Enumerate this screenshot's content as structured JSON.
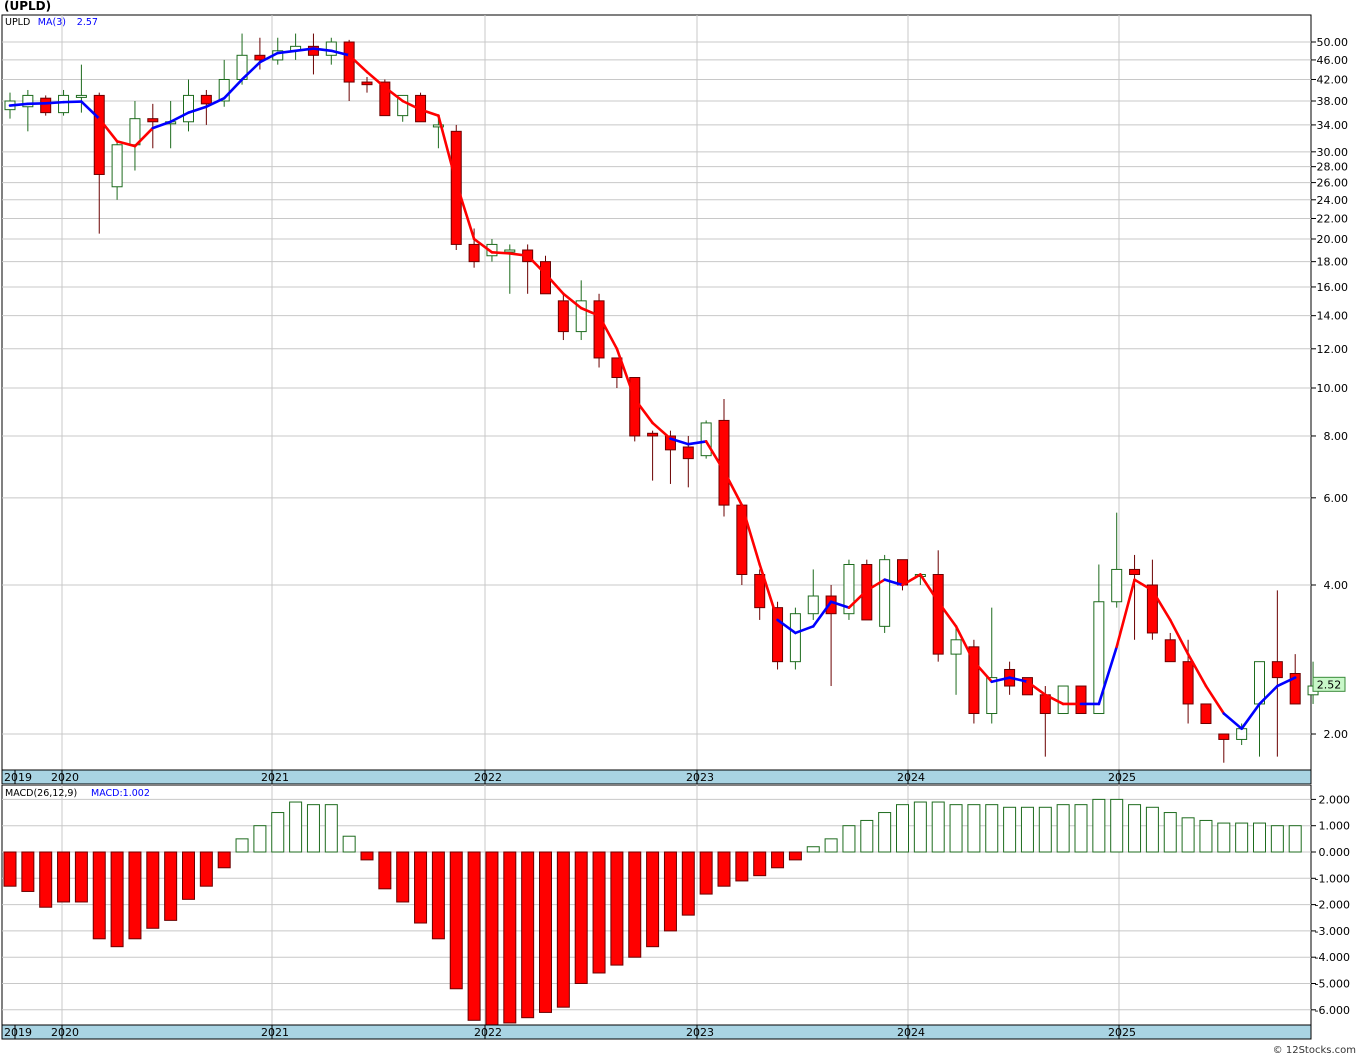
{
  "title": "(UPLD)",
  "credit": "© 12Stocks.com",
  "chart_data": [
    {
      "type": "candlestick",
      "legend": [
        {
          "label": "UPLD",
          "color": "#000000"
        },
        {
          "label": "MA(3)",
          "color": "#0000ff"
        },
        {
          "label": "2.57",
          "color": "#0000ff"
        }
      ],
      "yscale": "log",
      "ylim": [
        1.8,
        55
      ],
      "ytick_labels": [
        "50.00",
        "46.00",
        "42.00",
        "38.00",
        "34.00",
        "30.00",
        "28.00",
        "26.00",
        "24.00",
        "22.00",
        "20.00",
        "18.00",
        "16.00",
        "14.00",
        "12.00",
        "10.00",
        "8.00",
        "6.00",
        "4.00",
        "2.00"
      ],
      "x_labels": [
        "2019",
        "2020",
        "2021",
        "2022",
        "2023",
        "2024",
        "2025"
      ],
      "last_price_label": "2.52",
      "grid": true,
      "candles": [
        {
          "o": 36.5,
          "h": 39.5,
          "l": 35.0,
          "c": 38.0
        },
        {
          "o": 37.0,
          "h": 40.0,
          "l": 33.0,
          "c": 39.0
        },
        {
          "o": 38.5,
          "h": 39.0,
          "l": 35.5,
          "c": 36.0
        },
        {
          "o": 36.0,
          "h": 40.0,
          "l": 35.5,
          "c": 39.0
        },
        {
          "o": 39.0,
          "h": 45.0,
          "l": 36.0,
          "c": 39.0
        },
        {
          "o": 39.0,
          "h": 39.5,
          "l": 20.5,
          "c": 27.0
        },
        {
          "o": 25.5,
          "h": 31.5,
          "l": 24.0,
          "c": 31.0
        },
        {
          "o": 31.0,
          "h": 38.0,
          "l": 27.5,
          "c": 35.0
        },
        {
          "o": 35.0,
          "h": 37.5,
          "l": 30.5,
          "c": 34.5
        },
        {
          "o": 34.5,
          "h": 38.0,
          "l": 30.5,
          "c": 34.5
        },
        {
          "o": 34.5,
          "h": 42.0,
          "l": 33.0,
          "c": 39.0
        },
        {
          "o": 39.0,
          "h": 40.0,
          "l": 34.0,
          "c": 37.5
        },
        {
          "o": 38.0,
          "h": 46.0,
          "l": 37.0,
          "c": 42.0
        },
        {
          "o": 42.0,
          "h": 52.0,
          "l": 41.0,
          "c": 47.0
        },
        {
          "o": 47.0,
          "h": 51.0,
          "l": 44.0,
          "c": 46.0
        },
        {
          "o": 46.0,
          "h": 51.0,
          "l": 45.0,
          "c": 48.0
        },
        {
          "o": 48.0,
          "h": 52.0,
          "l": 46.0,
          "c": 49.0
        },
        {
          "o": 49.0,
          "h": 52.0,
          "l": 43.0,
          "c": 47.0
        },
        {
          "o": 47.0,
          "h": 51.0,
          "l": 45.0,
          "c": 50.0
        },
        {
          "o": 50.0,
          "h": 50.5,
          "l": 38.0,
          "c": 41.5
        },
        {
          "o": 41.5,
          "h": 42.5,
          "l": 39.5,
          "c": 41.0
        },
        {
          "o": 41.5,
          "h": 42.0,
          "l": 35.5,
          "c": 35.5
        },
        {
          "o": 35.5,
          "h": 39.0,
          "l": 34.5,
          "c": 39.0
        },
        {
          "o": 39.0,
          "h": 39.5,
          "l": 34.5,
          "c": 34.5
        },
        {
          "o": 34.0,
          "h": 35.0,
          "l": 30.5,
          "c": 34.0
        },
        {
          "o": 33.0,
          "h": 34.0,
          "l": 19.0,
          "c": 19.5
        },
        {
          "o": 19.5,
          "h": 21.0,
          "l": 17.5,
          "c": 18.0
        },
        {
          "o": 18.5,
          "h": 20.0,
          "l": 18.0,
          "c": 19.5
        },
        {
          "o": 19.0,
          "h": 19.5,
          "l": 15.5,
          "c": 19.0
        },
        {
          "o": 19.0,
          "h": 19.5,
          "l": 15.5,
          "c": 18.0
        },
        {
          "o": 18.0,
          "h": 18.5,
          "l": 15.5,
          "c": 15.5
        },
        {
          "o": 15.0,
          "h": 15.5,
          "l": 12.5,
          "c": 13.0
        },
        {
          "o": 13.0,
          "h": 16.5,
          "l": 12.5,
          "c": 15.0
        },
        {
          "o": 15.0,
          "h": 15.5,
          "l": 11.0,
          "c": 11.5
        },
        {
          "o": 11.5,
          "h": 11.5,
          "l": 10.0,
          "c": 10.5
        },
        {
          "o": 10.5,
          "h": 10.5,
          "l": 7.8,
          "c": 8.0
        },
        {
          "o": 8.1,
          "h": 8.2,
          "l": 6.5,
          "c": 8.0
        },
        {
          "o": 8.0,
          "h": 8.2,
          "l": 6.4,
          "c": 7.5
        },
        {
          "o": 7.6,
          "h": 8.0,
          "l": 6.3,
          "c": 7.2
        },
        {
          "o": 7.3,
          "h": 8.6,
          "l": 7.2,
          "c": 8.5
        },
        {
          "o": 8.6,
          "h": 9.5,
          "l": 5.5,
          "c": 5.8
        },
        {
          "o": 5.8,
          "h": 5.8,
          "l": 4.0,
          "c": 4.2
        },
        {
          "o": 4.2,
          "h": 4.3,
          "l": 3.4,
          "c": 3.6
        },
        {
          "o": 3.6,
          "h": 3.7,
          "l": 2.7,
          "c": 2.8
        },
        {
          "o": 2.8,
          "h": 3.6,
          "l": 2.7,
          "c": 3.5
        },
        {
          "o": 3.5,
          "h": 4.3,
          "l": 3.4,
          "c": 3.8
        },
        {
          "o": 3.8,
          "h": 4.0,
          "l": 2.5,
          "c": 3.5
        },
        {
          "o": 3.5,
          "h": 4.5,
          "l": 3.4,
          "c": 4.4
        },
        {
          "o": 4.4,
          "h": 4.5,
          "l": 3.4,
          "c": 3.4
        },
        {
          "o": 3.3,
          "h": 4.6,
          "l": 3.2,
          "c": 4.5
        },
        {
          "o": 4.5,
          "h": 4.5,
          "l": 3.9,
          "c": 4.0
        },
        {
          "o": 4.2,
          "h": 4.2,
          "l": 4.0,
          "c": 4.2
        },
        {
          "o": 4.2,
          "h": 4.7,
          "l": 2.8,
          "c": 2.9
        },
        {
          "o": 2.9,
          "h": 3.3,
          "l": 2.4,
          "c": 3.1
        },
        {
          "o": 3.0,
          "h": 3.1,
          "l": 2.1,
          "c": 2.2
        },
        {
          "o": 2.2,
          "h": 3.6,
          "l": 2.1,
          "c": 2.6
        },
        {
          "o": 2.7,
          "h": 2.8,
          "l": 2.4,
          "c": 2.5
        },
        {
          "o": 2.6,
          "h": 2.6,
          "l": 2.4,
          "c": 2.4
        },
        {
          "o": 2.4,
          "h": 2.5,
          "l": 1.8,
          "c": 2.2
        },
        {
          "o": 2.2,
          "h": 2.5,
          "l": 2.2,
          "c": 2.5
        },
        {
          "o": 2.5,
          "h": 2.5,
          "l": 2.2,
          "c": 2.2
        },
        {
          "o": 2.2,
          "h": 4.4,
          "l": 2.2,
          "c": 3.7
        },
        {
          "o": 3.7,
          "h": 5.6,
          "l": 3.6,
          "c": 4.3
        },
        {
          "o": 4.3,
          "h": 4.6,
          "l": 3.1,
          "c": 4.2
        },
        {
          "o": 4.0,
          "h": 4.5,
          "l": 3.1,
          "c": 3.2
        },
        {
          "o": 3.1,
          "h": 3.2,
          "l": 2.8,
          "c": 2.8
        },
        {
          "o": 2.8,
          "h": 3.1,
          "l": 2.1,
          "c": 2.3
        },
        {
          "o": 2.3,
          "h": 2.3,
          "l": 2.1,
          "c": 2.1
        },
        {
          "o": 2.0,
          "h": 2.0,
          "l": 1.75,
          "c": 1.95
        },
        {
          "o": 1.95,
          "h": 2.1,
          "l": 1.9,
          "c": 2.05
        },
        {
          "o": 2.3,
          "h": 2.8,
          "l": 1.8,
          "c": 2.8
        },
        {
          "o": 2.8,
          "h": 3.9,
          "l": 1.8,
          "c": 2.6
        },
        {
          "o": 2.65,
          "h": 2.9,
          "l": 2.3,
          "c": 2.3
        },
        {
          "o": 2.4,
          "h": 2.8,
          "l": 2.3,
          "c": 2.5
        }
      ],
      "ma": [
        37.2,
        37.5,
        37.6,
        37.8,
        37.9,
        35.0,
        31.5,
        30.8,
        33.5,
        34.5,
        36.0,
        37.0,
        38.5,
        42.0,
        45.5,
        47.5,
        48.0,
        48.5,
        48.0,
        47.0,
        43.5,
        40.5,
        38.0,
        36.5,
        35.5,
        26.0,
        20.0,
        18.8,
        18.7,
        18.5,
        17.0,
        15.5,
        14.5,
        14.0,
        12.0,
        9.5,
        8.5,
        7.9,
        7.7,
        7.8,
        6.8,
        5.8,
        4.4,
        3.4,
        3.2,
        3.3,
        3.7,
        3.6,
        3.9,
        4.1,
        4.0,
        4.2,
        3.7,
        3.3,
        2.8,
        2.55,
        2.6,
        2.55,
        2.4,
        2.3,
        2.3,
        2.3,
        3.0,
        4.1,
        3.9,
        3.4,
        2.9,
        2.5,
        2.2,
        2.05,
        2.3,
        2.5,
        2.6
      ],
      "ma_colors": [
        "#0000ff",
        "#0000ff",
        "#0000ff",
        "#0000ff",
        "#0000ff",
        "#ff0000",
        "#ff0000",
        "#ff0000",
        "#0000ff",
        "#0000ff",
        "#0000ff",
        "#0000ff",
        "#0000ff",
        "#0000ff",
        "#0000ff",
        "#0000ff",
        "#0000ff",
        "#0000ff",
        "#0000ff",
        "#ff0000",
        "#ff0000",
        "#ff0000",
        "#ff0000",
        "#ff0000",
        "#ff0000",
        "#ff0000",
        "#ff0000",
        "#ff0000",
        "#ff0000",
        "#ff0000",
        "#ff0000",
        "#ff0000",
        "#ff0000",
        "#ff0000",
        "#ff0000",
        "#ff0000",
        "#ff0000",
        "#0000ff",
        "#0000ff",
        "#ff0000",
        "#ff0000",
        "#ff0000",
        "#ff0000",
        "#0000ff",
        "#0000ff",
        "#0000ff",
        "#0000ff",
        "#ff0000",
        "#ff0000",
        "#0000ff",
        "#ff0000",
        "#ff0000",
        "#ff0000",
        "#ff0000",
        "#ff0000",
        "#0000ff",
        "#0000ff",
        "#ff0000",
        "#ff0000",
        "#ff0000",
        "#0000ff",
        "#0000ff",
        "#ff0000",
        "#ff0000",
        "#ff0000",
        "#ff0000",
        "#ff0000",
        "#ff0000",
        "#0000ff",
        "#0000ff",
        "#0000ff",
        "#0000ff"
      ]
    },
    {
      "type": "bar",
      "legend": [
        {
          "label": "MACD(26,12,9)",
          "color": "#000000"
        },
        {
          "label": "MACD:1.002",
          "color": "#0000ff"
        }
      ],
      "ylim": [
        -6.6,
        2.4
      ],
      "ytick_labels": [
        "2.000",
        "1.000",
        "0.000",
        "-1.000",
        "-2.000",
        "-3.000",
        "-4.000",
        "-5.000",
        "-6.000"
      ],
      "ytick_values": [
        2,
        1,
        0,
        -1,
        -2,
        -3,
        -4,
        -5,
        -6
      ],
      "x_labels": [
        "2019",
        "2020",
        "2021",
        "2022",
        "2023",
        "2024",
        "2025"
      ],
      "values": [
        -1.3,
        -1.5,
        -2.1,
        -1.9,
        -1.9,
        -3.3,
        -3.6,
        -3.3,
        -2.9,
        -2.6,
        -1.8,
        -1.3,
        -0.6,
        0.5,
        1.0,
        1.5,
        1.9,
        1.8,
        1.8,
        0.6,
        -0.3,
        -1.4,
        -1.9,
        -2.7,
        -3.3,
        -5.2,
        -6.4,
        -6.6,
        -6.5,
        -6.3,
        -6.1,
        -5.9,
        -5.0,
        -4.6,
        -4.3,
        -4.0,
        -3.6,
        -3.0,
        -2.4,
        -1.6,
        -1.3,
        -1.1,
        -0.9,
        -0.6,
        -0.3,
        0.2,
        0.5,
        1.0,
        1.2,
        1.5,
        1.8,
        1.9,
        1.9,
        1.8,
        1.8,
        1.8,
        1.7,
        1.7,
        1.7,
        1.8,
        1.8,
        2.0,
        2.0,
        1.8,
        1.7,
        1.5,
        1.3,
        1.2,
        1.1,
        1.1,
        1.1,
        1.0,
        1.0
      ]
    }
  ]
}
